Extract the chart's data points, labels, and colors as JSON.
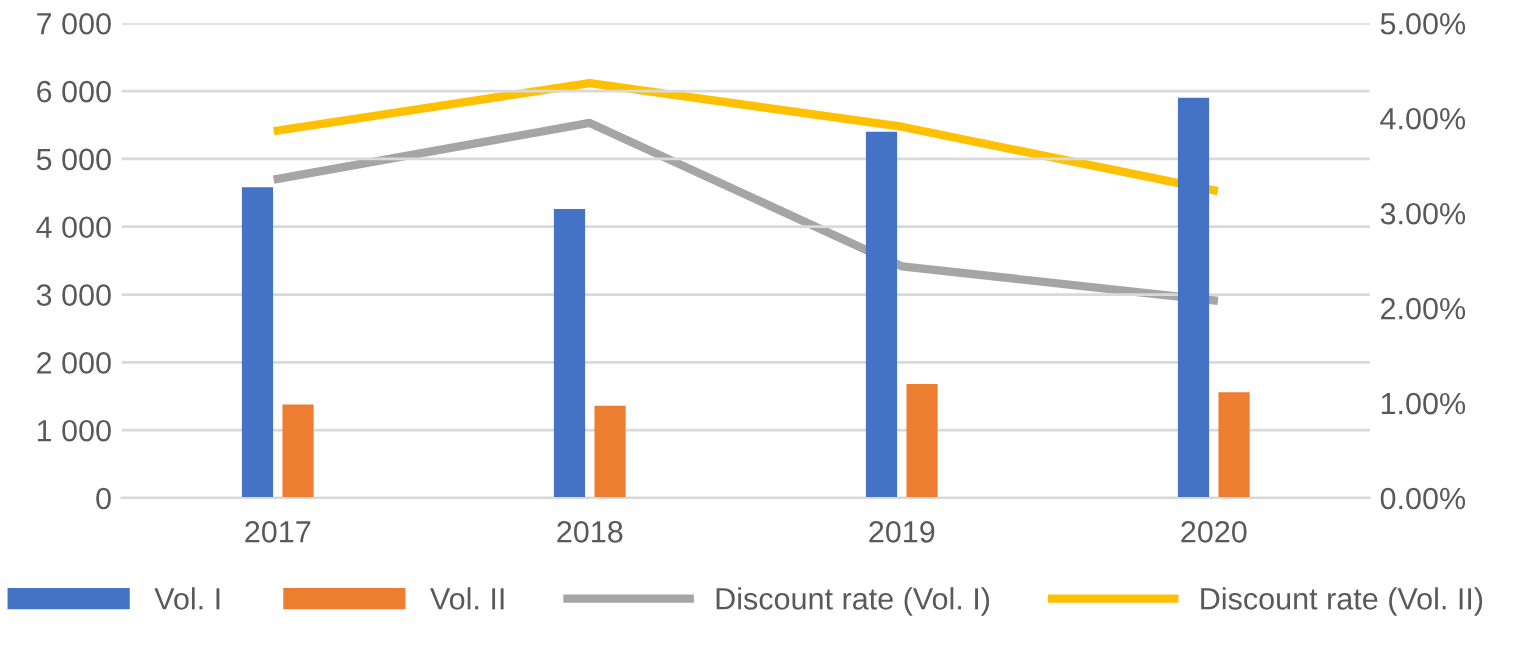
{
  "chart_data": {
    "type": "bar",
    "categories": [
      "2017",
      "2018",
      "2019",
      "2020"
    ],
    "series": [
      {
        "name": "Vol. I",
        "color": "#4472c4",
        "values": [
          4580,
          4260,
          5400,
          5900
        ]
      },
      {
        "name": "Vol. II",
        "color": "#ed7d31",
        "values": [
          1380,
          1360,
          1680,
          1560
        ]
      },
      {
        "name": "Discount rate (Vol. I)",
        "type": "line",
        "axis": "y2",
        "color": "#a5a5a5",
        "values": [
          3.36,
          3.95,
          2.44,
          2.08
        ]
      },
      {
        "name": "Discount rate (Vol. II)",
        "type": "line",
        "axis": "y2",
        "color": "#ffc000",
        "values": [
          3.87,
          4.37,
          3.91,
          3.24
        ]
      }
    ],
    "ylim": [
      0,
      7000
    ],
    "yticks": [
      {
        "value": 0,
        "label": "0"
      },
      {
        "value": 1000,
        "label": "1 000"
      },
      {
        "value": 2000,
        "label": "2 000"
      },
      {
        "value": 3000,
        "label": "3 000"
      },
      {
        "value": 4000,
        "label": "4 000"
      },
      {
        "value": 5000,
        "label": "5 000"
      },
      {
        "value": 6000,
        "label": "6 000"
      },
      {
        "value": 7000,
        "label": "7 000"
      }
    ],
    "y2lim": [
      0,
      5
    ],
    "y2ticks": [
      {
        "value": 0,
        "label": "0.00%"
      },
      {
        "value": 1,
        "label": "1.00%"
      },
      {
        "value": 2,
        "label": "2.00%"
      },
      {
        "value": 3,
        "label": "3.00%"
      },
      {
        "value": 4,
        "label": "4.00%"
      },
      {
        "value": 5,
        "label": "5.00%"
      }
    ],
    "grid": "y",
    "legend": "bottom",
    "marker": "none",
    "line_style": "solid"
  }
}
